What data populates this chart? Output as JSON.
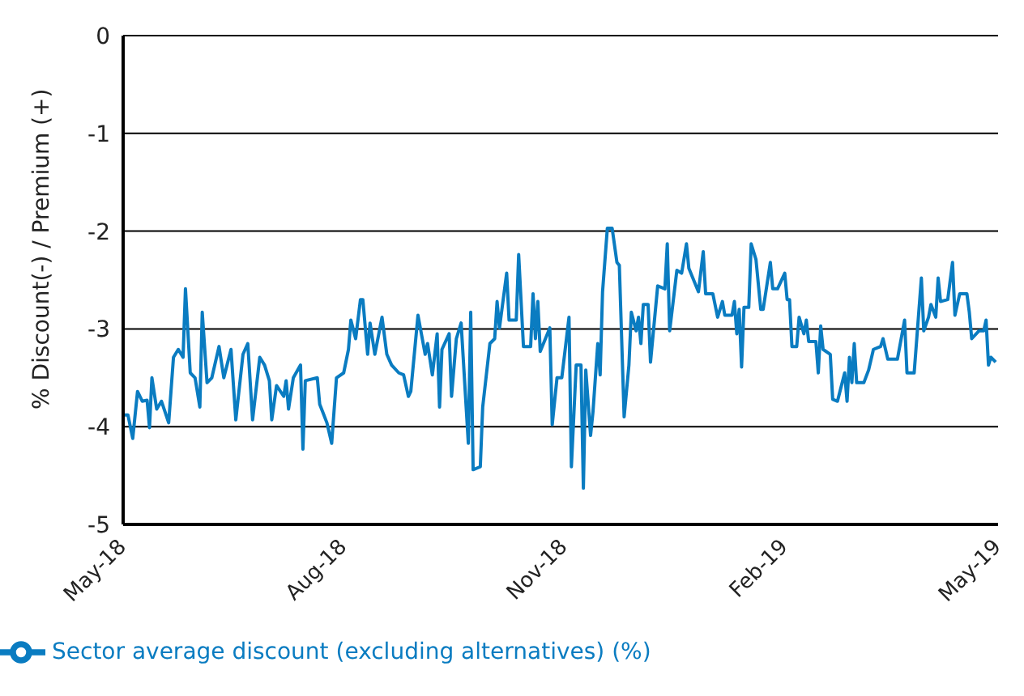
{
  "chart_data": {
    "type": "line",
    "ylabel": "% Discount(-) / Premium (+)",
    "x": [
      "2018-05-01",
      "2018-05-03",
      "2018-05-05",
      "2018-05-07",
      "2018-05-09",
      "2018-05-11",
      "2018-05-12",
      "2018-05-13",
      "2018-05-15",
      "2018-05-17",
      "2018-05-20",
      "2018-05-22",
      "2018-05-24",
      "2018-05-26",
      "2018-05-27",
      "2018-05-29",
      "2018-05-31",
      "2018-06-02",
      "2018-06-03",
      "2018-06-05",
      "2018-06-07",
      "2018-06-10",
      "2018-06-12",
      "2018-06-15",
      "2018-06-17",
      "2018-06-20",
      "2018-06-22",
      "2018-06-24",
      "2018-06-27",
      "2018-06-29",
      "2018-07-01",
      "2018-07-02",
      "2018-07-04",
      "2018-07-07",
      "2018-07-08",
      "2018-07-09",
      "2018-07-11",
      "2018-07-14",
      "2018-07-15",
      "2018-07-16",
      "2018-07-21",
      "2018-07-22",
      "2018-07-25",
      "2018-07-27",
      "2018-07-29",
      "2018-08-01",
      "2018-08-03",
      "2018-08-04",
      "2018-08-06",
      "2018-08-08",
      "2018-08-09",
      "2018-08-11",
      "2018-08-12",
      "2018-08-14",
      "2018-08-17",
      "2018-08-19",
      "2018-08-21",
      "2018-08-24",
      "2018-08-26",
      "2018-08-28",
      "2018-08-29",
      "2018-09-01",
      "2018-09-04",
      "2018-09-05",
      "2018-09-07",
      "2018-09-09",
      "2018-09-10",
      "2018-09-11",
      "2018-09-14",
      "2018-09-15",
      "2018-09-17",
      "2018-09-19",
      "2018-09-22",
      "2018-09-23",
      "2018-09-24",
      "2018-09-27",
      "2018-09-28",
      "2018-10-01",
      "2018-10-03",
      "2018-10-04",
      "2018-10-05",
      "2018-10-08",
      "2018-10-09",
      "2018-10-12",
      "2018-10-13",
      "2018-10-15",
      "2018-10-18",
      "2018-10-19",
      "2018-10-20",
      "2018-10-21",
      "2018-10-22",
      "2018-10-26",
      "2018-10-27",
      "2018-10-29",
      "2018-10-31",
      "2018-11-03",
      "2018-11-04",
      "2018-11-06",
      "2018-11-08",
      "2018-11-09",
      "2018-11-10",
      "2018-11-12",
      "2018-11-13",
      "2018-11-15",
      "2018-11-16",
      "2018-11-17",
      "2018-11-19",
      "2018-11-21",
      "2018-11-23",
      "2018-11-24",
      "2018-11-26",
      "2018-11-28",
      "2018-11-29",
      "2018-12-01",
      "2018-12-02",
      "2018-12-03",
      "2018-12-04",
      "2018-12-06",
      "2018-12-07",
      "2018-12-10",
      "2018-12-13",
      "2018-12-14",
      "2018-12-15",
      "2018-12-18",
      "2018-12-20",
      "2018-12-22",
      "2018-12-23",
      "2018-12-27",
      "2018-12-29",
      "2018-12-30",
      "2019-01-02",
      "2019-01-04",
      "2019-01-06",
      "2019-01-07",
      "2019-01-10",
      "2019-01-11",
      "2019-01-12",
      "2019-01-13",
      "2019-01-14",
      "2019-01-15",
      "2019-01-17",
      "2019-01-18",
      "2019-01-20",
      "2019-01-22",
      "2019-01-23",
      "2019-01-26",
      "2019-01-27",
      "2019-01-29",
      "2019-02-01",
      "2019-02-02",
      "2019-02-03",
      "2019-02-04",
      "2019-02-06",
      "2019-02-07",
      "2019-02-09",
      "2019-02-10",
      "2019-02-11",
      "2019-02-14",
      "2019-02-15",
      "2019-02-16",
      "2019-02-17",
      "2019-02-20",
      "2019-02-21",
      "2019-02-23",
      "2019-02-26",
      "2019-02-27",
      "2019-02-28",
      "2019-03-01",
      "2019-03-02",
      "2019-03-03",
      "2019-03-06",
      "2019-03-08",
      "2019-03-10",
      "2019-03-13",
      "2019-03-14",
      "2019-03-16",
      "2019-03-20",
      "2019-03-23",
      "2019-03-24",
      "2019-03-27",
      "2019-03-30",
      "2019-03-31",
      "2019-04-02",
      "2019-04-03",
      "2019-04-05",
      "2019-04-06",
      "2019-04-07",
      "2019-04-10",
      "2019-04-12",
      "2019-04-13",
      "2019-04-15",
      "2019-04-18",
      "2019-04-19",
      "2019-04-20",
      "2019-04-23",
      "2019-04-25",
      "2019-04-26",
      "2019-04-27",
      "2019-04-28",
      "2019-04-30"
    ],
    "series": [
      {
        "name": "Sector average discount (excluding alternatives) (%)",
        "color": "#0a7cc1",
        "values": [
          -3.88,
          -3.88,
          -4.12,
          -3.64,
          -3.74,
          -3.73,
          -4.01,
          -3.5,
          -3.82,
          -3.74,
          -3.96,
          -3.29,
          -3.21,
          -3.29,
          -2.59,
          -3.45,
          -3.5,
          -3.8,
          -2.83,
          -3.55,
          -3.5,
          -3.18,
          -3.5,
          -3.21,
          -3.93,
          -3.26,
          -3.15,
          -3.93,
          -3.29,
          -3.37,
          -3.53,
          -3.93,
          -3.58,
          -3.69,
          -3.53,
          -3.82,
          -3.5,
          -3.37,
          -4.23,
          -3.53,
          -3.5,
          -3.77,
          -3.96,
          -4.17,
          -3.5,
          -3.45,
          -3.21,
          -2.91,
          -3.1,
          -2.7,
          -2.7,
          -3.26,
          -2.94,
          -3.26,
          -2.88,
          -3.26,
          -3.37,
          -3.45,
          -3.47,
          -3.69,
          -3.64,
          -2.86,
          -3.26,
          -3.15,
          -3.47,
          -3.05,
          -3.8,
          -3.21,
          -3.05,
          -3.69,
          -3.1,
          -2.94,
          -4.17,
          -2.83,
          -4.44,
          -4.41,
          -3.8,
          -3.15,
          -3.1,
          -2.72,
          -2.99,
          -2.43,
          -2.91,
          -2.91,
          -2.24,
          -3.18,
          -3.18,
          -2.64,
          -3.1,
          -2.72,
          -3.23,
          -2.99,
          -3.98,
          -3.5,
          -3.5,
          -2.88,
          -4.41,
          -3.37,
          -3.37,
          -4.63,
          -3.42,
          -4.09,
          -3.85,
          -3.15,
          -3.47,
          -2.62,
          -1.97,
          -1.97,
          -2.32,
          -2.35,
          -3.9,
          -3.37,
          -2.83,
          -3.02,
          -2.88,
          -3.15,
          -2.75,
          -2.75,
          -3.34,
          -2.56,
          -2.59,
          -2.13,
          -3.02,
          -2.4,
          -2.43,
          -2.13,
          -2.38,
          -2.62,
          -2.21,
          -2.64,
          -2.64,
          -2.88,
          -2.72,
          -2.86,
          -2.86,
          -2.72,
          -3.05,
          -2.8,
          -3.39,
          -2.78,
          -2.78,
          -2.13,
          -2.29,
          -2.8,
          -2.8,
          -2.32,
          -2.59,
          -2.59,
          -2.43,
          -2.7,
          -2.7,
          -3.18,
          -3.18,
          -2.88,
          -3.05,
          -2.91,
          -3.13,
          -3.13,
          -3.45,
          -2.97,
          -3.21,
          -3.26,
          -3.72,
          -3.74,
          -3.45,
          -3.74,
          -3.29,
          -3.55,
          -3.15,
          -3.55,
          -3.55,
          -3.42,
          -3.21,
          -3.18,
          -3.1,
          -3.31,
          -3.31,
          -2.91,
          -3.45,
          -3.45,
          -2.48,
          -3.02,
          -2.88,
          -2.75,
          -2.88,
          -2.48,
          -2.72,
          -2.7,
          -2.32,
          -2.86,
          -2.64,
          -2.64,
          -2.83,
          -3.1,
          -3.02,
          -3.02,
          -2.91,
          -3.37,
          -3.29,
          -3.34
        ]
      }
    ],
    "xlim": [
      "2018-05-01",
      "2019-05-01"
    ],
    "xticks": [
      {
        "value": "2018-05-01",
        "label": "May-18"
      },
      {
        "value": "2018-08-01",
        "label": "Aug-18"
      },
      {
        "value": "2018-11-01",
        "label": "Nov-18"
      },
      {
        "value": "2019-02-01",
        "label": "Feb-19"
      },
      {
        "value": "2019-05-01",
        "label": "May-19"
      }
    ],
    "ylim": [
      -5,
      0
    ],
    "yticks": [
      -5,
      -4,
      -3,
      -2,
      -1,
      0
    ],
    "grid": "y",
    "legend": "bottom left",
    "marker": "none",
    "line_style": "solid"
  }
}
